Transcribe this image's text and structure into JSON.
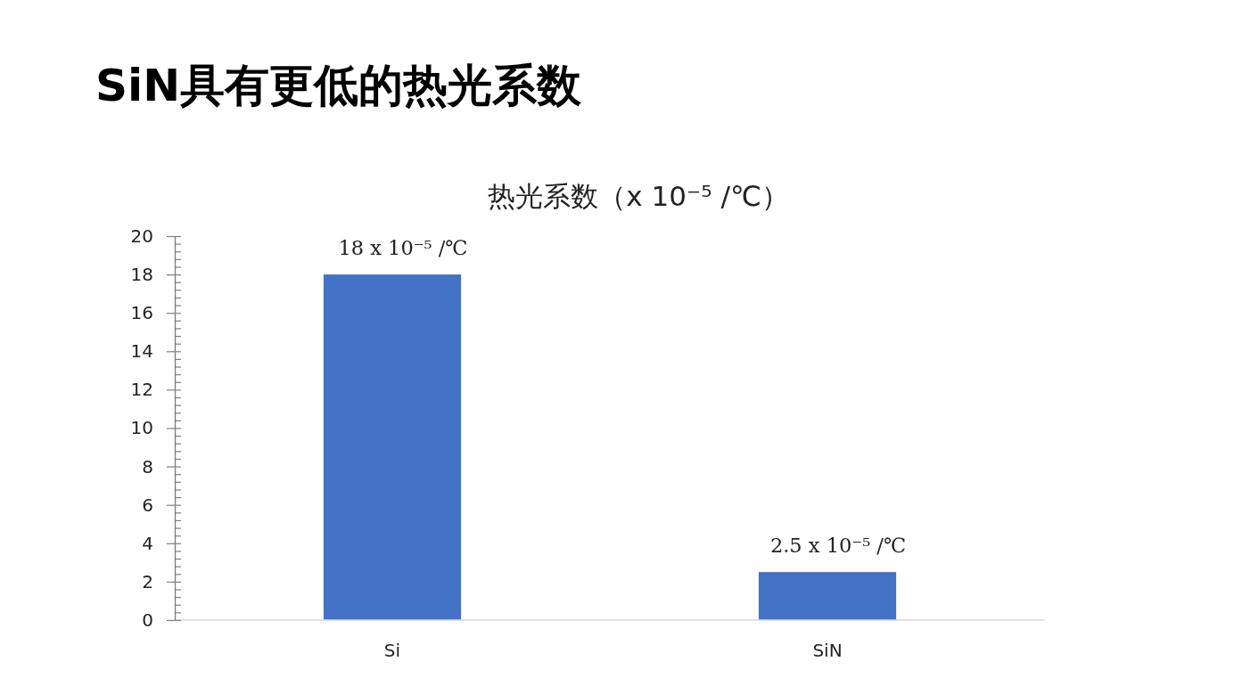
{
  "chart_data": {
    "type": "bar",
    "title": "SiN具有更低的热光系数",
    "subtitle": "热光系数（x 10⁻⁵ /℃）",
    "categories": [
      "Si",
      "SiN"
    ],
    "values": [
      18,
      2.5
    ],
    "color": "#4472c4",
    "value_labels": [
      "18 x 10⁻⁵ /℃",
      "2.5 x 10⁻⁵ /℃"
    ],
    "ylim": [
      0,
      20
    ],
    "yticks": [
      0,
      {
        "value": 0.4,
        "label": null
      },
      {
        "value": 0.8,
        "label": null
      },
      {
        "value": 1.2,
        "label": null
      },
      {
        "value": 1.6,
        "label": null
      },
      2,
      {
        "value": 2.4,
        "label": null
      },
      {
        "value": 2.8,
        "label": null
      },
      {
        "value": 3.2,
        "label": null
      },
      {
        "value": 3.6,
        "label": null
      },
      4,
      {
        "value": 4.4,
        "label": null
      },
      {
        "value": 4.8,
        "label": null
      },
      {
        "value": 5.2,
        "label": null
      },
      {
        "value": 5.6,
        "label": null
      },
      6,
      {
        "value": 6.4,
        "label": null
      },
      {
        "value": 6.8,
        "label": null
      },
      {
        "value": 7.2,
        "label": null
      },
      {
        "value": 7.6,
        "label": null
      },
      8,
      {
        "value": 8.4,
        "label": null
      },
      {
        "value": 8.8,
        "label": null
      },
      {
        "value": 9.2,
        "label": null
      },
      {
        "value": 9.6,
        "label": null
      },
      10,
      {
        "value": 10.4,
        "label": null
      },
      {
        "value": 10.8,
        "label": null
      },
      {
        "value": 11.2,
        "label": null
      },
      {
        "value": 11.6,
        "label": null
      },
      12,
      {
        "value": 12.4,
        "label": null
      },
      {
        "value": 12.8,
        "label": null
      },
      {
        "value": 13.2,
        "label": null
      },
      {
        "value": 13.6,
        "label": null
      },
      14,
      {
        "value": 14.4,
        "label": null
      },
      {
        "value": 14.8,
        "label": null
      },
      {
        "value": 15.2,
        "label": null
      },
      {
        "value": 15.6,
        "label": null
      },
      16,
      {
        "value": 16.4,
        "label": null
      },
      {
        "value": 16.8,
        "label": null
      },
      {
        "value": 17.2,
        "label": null
      },
      {
        "value": 17.6,
        "label": null
      },
      18,
      {
        "value": 18.4,
        "label": null
      },
      {
        "value": 18.8,
        "label": null
      },
      {
        "value": 19.2,
        "label": null
      },
      {
        "value": 19.6,
        "label": null
      },
      20
    ]
  }
}
